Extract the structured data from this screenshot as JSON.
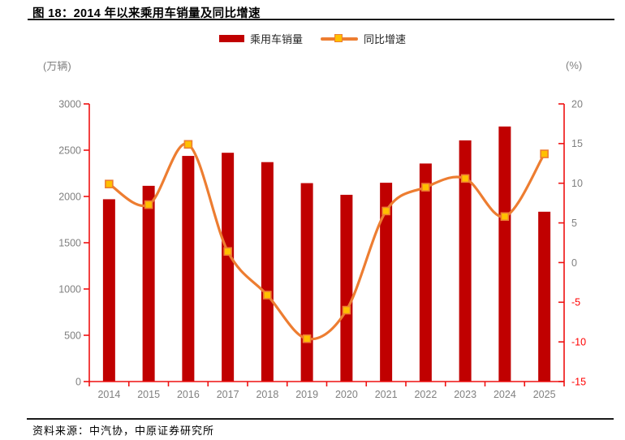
{
  "figure": {
    "title": "图 18：2014 年以来乘用车销量及同比增速",
    "source": "资料来源：中汽协，中原证券研究所"
  },
  "legend": {
    "bar_label": "乘用车销量",
    "line_label": "同比增速"
  },
  "axis_units": {
    "left": "(万辆)",
    "right": "(%)"
  },
  "colors": {
    "bar": "#C00000",
    "line": "#ED7D31",
    "marker_fill": "#FFC000",
    "marker_stroke": "#ED7D31",
    "axis": "#EE1111",
    "tick_label": "#808080",
    "negative_tick_label": "#FF0000"
  },
  "chart_data": {
    "type": "bar+line",
    "title": "图 18：2014 年以来乘用车销量及同比增速",
    "categories": [
      "2014",
      "2015",
      "2016",
      "2017",
      "2018",
      "2019",
      "2020",
      "2021",
      "2022",
      "2023",
      "2024",
      "2025"
    ],
    "series": [
      {
        "name": "乘用车销量",
        "type": "bar",
        "axis": "left",
        "unit": "万辆",
        "values": [
          1970,
          2115,
          2438,
          2472,
          2371,
          2144,
          2018,
          2148,
          2356,
          2606,
          2756,
          1835
        ]
      },
      {
        "name": "同比增速",
        "type": "line",
        "axis": "right",
        "unit": "%",
        "values": [
          9.9,
          7.3,
          14.9,
          1.4,
          -4.1,
          -9.6,
          -6.0,
          6.5,
          9.5,
          10.6,
          5.8,
          13.7
        ]
      }
    ],
    "left_axis": {
      "label": "(万辆)",
      "min": 0,
      "max": 3000,
      "ticks": [
        0,
        500,
        1000,
        1500,
        2000,
        2500,
        3000
      ]
    },
    "right_axis": {
      "label": "(%)",
      "min": -15,
      "max": 20,
      "ticks": [
        -15,
        -10,
        -5,
        0,
        5,
        10,
        15,
        20
      ]
    },
    "grid": false,
    "legend_position": "top-center",
    "line_smooth": true
  }
}
